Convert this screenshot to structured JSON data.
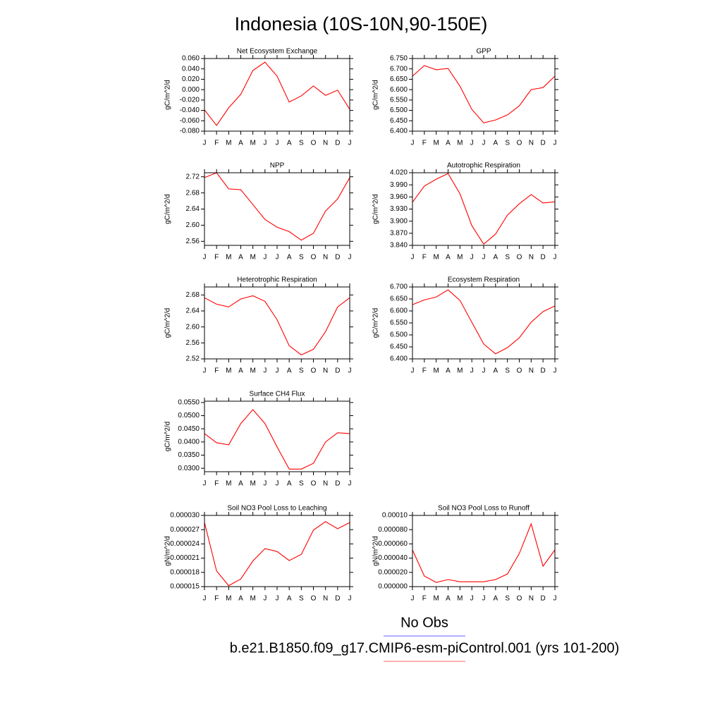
{
  "title": "Indonesia (10S-10N,90-150E)",
  "legend": [
    {
      "name": "No Obs",
      "color": "#8080ff"
    },
    {
      "name": "b.e21.B1850.f09_g17.CMIP6-esm-piControl.001 (yrs 101-200)",
      "color": "#ff8080"
    }
  ],
  "chart_data": [
    {
      "type": "line",
      "title": "Net Ecosystem Exchange",
      "ylabel": "gC/m^2/d",
      "categories": [
        "J",
        "F",
        "M",
        "A",
        "M",
        "J",
        "J",
        "A",
        "S",
        "O",
        "N",
        "D",
        "J"
      ],
      "values": [
        -0.039,
        -0.069,
        -0.035,
        -0.009,
        0.037,
        0.053,
        0.026,
        -0.024,
        -0.012,
        0.007,
        -0.011,
        -0.001,
        -0.038
      ],
      "color": "#ff0000",
      "ylim": [
        -0.08,
        0.06
      ],
      "yticks": [
        {
          "value": -0.08,
          "label": "-0.080"
        },
        {
          "value": -0.06,
          "label": "-0.060"
        },
        {
          "value": -0.04,
          "label": "-0.040"
        },
        {
          "value": -0.02,
          "label": "-0.020"
        },
        {
          "value": 0,
          "label": "0.000"
        },
        {
          "value": 0.02,
          "label": "0.020"
        },
        {
          "value": 0.04,
          "label": "0.040"
        },
        {
          "value": 0.06,
          "label": "0.060"
        }
      ]
    },
    {
      "type": "line",
      "title": "GPP",
      "ylabel": "gC/m^2/d",
      "categories": [
        "J",
        "F",
        "M",
        "A",
        "M",
        "J",
        "J",
        "A",
        "S",
        "O",
        "N",
        "D",
        "J"
      ],
      "values": [
        6.665,
        6.716,
        6.696,
        6.702,
        6.617,
        6.505,
        6.44,
        6.454,
        6.478,
        6.522,
        6.6,
        6.61,
        6.665
      ],
      "color": "#ff0000",
      "ylim": [
        6.4,
        6.75
      ],
      "yticks": [
        {
          "value": 6.4,
          "label": "6.400"
        },
        {
          "value": 6.45,
          "label": "6.450"
        },
        {
          "value": 6.5,
          "label": "6.500"
        },
        {
          "value": 6.55,
          "label": "6.550"
        },
        {
          "value": 6.6,
          "label": "6.600"
        },
        {
          "value": 6.65,
          "label": "6.650"
        },
        {
          "value": 6.7,
          "label": "6.700"
        },
        {
          "value": 6.75,
          "label": "6.750"
        }
      ]
    },
    {
      "type": "line",
      "title": "NPP",
      "ylabel": "gC/m^2/d",
      "categories": [
        "J",
        "F",
        "M",
        "A",
        "M",
        "J",
        "J",
        "A",
        "S",
        "O",
        "N",
        "D",
        "J"
      ],
      "values": [
        2.718,
        2.73,
        2.69,
        2.688,
        2.651,
        2.614,
        2.595,
        2.584,
        2.563,
        2.58,
        2.635,
        2.665,
        2.718
      ],
      "color": "#ff0000",
      "ylim": [
        2.55,
        2.73
      ],
      "yticks": [
        2.56,
        {
          "value": 2.6,
          "label": "2.60"
        },
        2.64,
        2.68,
        2.72
      ]
    },
    {
      "type": "line",
      "title": "Autotrophic Respiration",
      "ylabel": "gC/m^2/d",
      "categories": [
        "J",
        "F",
        "M",
        "A",
        "M",
        "J",
        "J",
        "A",
        "S",
        "O",
        "N",
        "D",
        "J"
      ],
      "values": [
        3.947,
        3.987,
        4.004,
        4.018,
        3.968,
        3.889,
        3.843,
        3.868,
        3.915,
        3.943,
        3.966,
        3.945,
        3.948
      ],
      "color": "#ff0000",
      "ylim": [
        3.84,
        4.02
      ],
      "yticks": [
        {
          "value": 3.84,
          "label": "3.840"
        },
        {
          "value": 3.87,
          "label": "3.870"
        },
        {
          "value": 3.9,
          "label": "3.900"
        },
        {
          "value": 3.93,
          "label": "3.930"
        },
        {
          "value": 3.96,
          "label": "3.960"
        },
        {
          "value": 3.99,
          "label": "3.990"
        },
        {
          "value": 4.02,
          "label": "4.020"
        }
      ]
    },
    {
      "type": "line",
      "title": "Heterotrophic Respiration",
      "ylabel": "gC/m^2/d",
      "categories": [
        "J",
        "F",
        "M",
        "A",
        "M",
        "J",
        "J",
        "A",
        "S",
        "O",
        "N",
        "D",
        "J"
      ],
      "values": [
        2.673,
        2.657,
        2.65,
        2.67,
        2.678,
        2.664,
        2.618,
        2.553,
        2.53,
        2.544,
        2.588,
        2.65,
        2.673
      ],
      "color": "#ff0000",
      "ylim": [
        2.52,
        2.7
      ],
      "yticks": [
        2.52,
        2.56,
        {
          "value": 2.6,
          "label": "2.60"
        },
        2.64,
        2.68
      ]
    },
    {
      "type": "line",
      "title": "Ecosystem Respiration",
      "ylabel": "gC/m^2/d",
      "categories": [
        "J",
        "F",
        "M",
        "A",
        "M",
        "J",
        "J",
        "A",
        "S",
        "O",
        "N",
        "D",
        "J"
      ],
      "values": [
        6.626,
        6.646,
        6.658,
        6.688,
        6.644,
        6.553,
        6.462,
        6.421,
        6.447,
        6.488,
        6.553,
        6.597,
        6.621
      ],
      "color": "#ff0000",
      "ylim": [
        6.4,
        6.7
      ],
      "yticks": [
        {
          "value": 6.4,
          "label": "6.400"
        },
        {
          "value": 6.45,
          "label": "6.450"
        },
        {
          "value": 6.5,
          "label": "6.500"
        },
        {
          "value": 6.55,
          "label": "6.550"
        },
        {
          "value": 6.6,
          "label": "6.600"
        },
        {
          "value": 6.65,
          "label": "6.650"
        },
        {
          "value": 6.7,
          "label": "6.700"
        }
      ]
    },
    {
      "type": "line",
      "title": "Surface CH4 Flux",
      "ylabel": "gC/m^2/d",
      "categories": [
        "J",
        "F",
        "M",
        "A",
        "M",
        "J",
        "J",
        "A",
        "S",
        "O",
        "N",
        "D",
        "J"
      ],
      "values": [
        0.0432,
        0.0397,
        0.0389,
        0.047,
        0.0523,
        0.047,
        0.0381,
        0.0297,
        0.0297,
        0.0319,
        0.04,
        0.0435,
        0.0432
      ],
      "color": "#ff0000",
      "ylim": [
        0.0287,
        0.0555
      ],
      "yticks": [
        {
          "value": 0.03,
          "label": "0.0300"
        },
        {
          "value": 0.035,
          "label": "0.0350"
        },
        {
          "value": 0.04,
          "label": "0.0400"
        },
        {
          "value": 0.045,
          "label": "0.0450"
        },
        {
          "value": 0.05,
          "label": "0.0500"
        },
        {
          "value": 0.055,
          "label": "0.0550"
        }
      ]
    },
    {
      "type": "line",
      "title": "Soil NO3 Pool Loss to Leaching",
      "ylabel": "gN/m^2/d",
      "categories": [
        "J",
        "F",
        "M",
        "A",
        "M",
        "J",
        "J",
        "A",
        "S",
        "O",
        "N",
        "D",
        "J"
      ],
      "values": [
        2.85e-05,
        1.83e-05,
        1.52e-05,
        1.66e-05,
        2.04e-05,
        2.3e-05,
        2.24e-05,
        2.05e-05,
        2.18e-05,
        2.69e-05,
        2.87e-05,
        2.72e-05,
        2.85e-05
      ],
      "color": "#ff0000",
      "ylim": [
        1.5e-05,
        3e-05
      ],
      "yticks": [
        {
          "value": 1.5e-05,
          "label": "0.000015"
        },
        {
          "value": 1.8e-05,
          "label": "0.000018"
        },
        {
          "value": 2.1e-05,
          "label": "0.000021"
        },
        {
          "value": 2.4e-05,
          "label": "0.000024"
        },
        {
          "value": 2.7e-05,
          "label": "0.000027"
        },
        {
          "value": 3e-05,
          "label": "0.000030"
        }
      ]
    },
    {
      "type": "line",
      "title": "Soil NO3 Pool Loss to Runoff",
      "ylabel": "gN/m^2/d",
      "categories": [
        "J",
        "F",
        "M",
        "A",
        "M",
        "J",
        "J",
        "A",
        "S",
        "O",
        "N",
        "D",
        "J"
      ],
      "values": [
        5.15e-05,
        1.49e-05,
        5.9e-06,
        9.9e-06,
        6.9e-06,
        6.9e-06,
        6.9e-06,
        9.9e-06,
        1.78e-05,
        4.65e-05,
        8.81e-05,
        2.87e-05,
        5.15e-05
      ],
      "color": "#ff0000",
      "ylim": [
        0,
        0.0001
      ],
      "yticks": [
        {
          "value": 0,
          "label": "0.000000"
        },
        {
          "value": 2e-05,
          "label": "0.000020"
        },
        {
          "value": 4e-05,
          "label": "0.000040"
        },
        {
          "value": 6e-05,
          "label": "0.000060"
        },
        {
          "value": 8e-05,
          "label": "0.000080"
        },
        {
          "value": 0.0001,
          "label": "0.00010"
        }
      ]
    }
  ]
}
